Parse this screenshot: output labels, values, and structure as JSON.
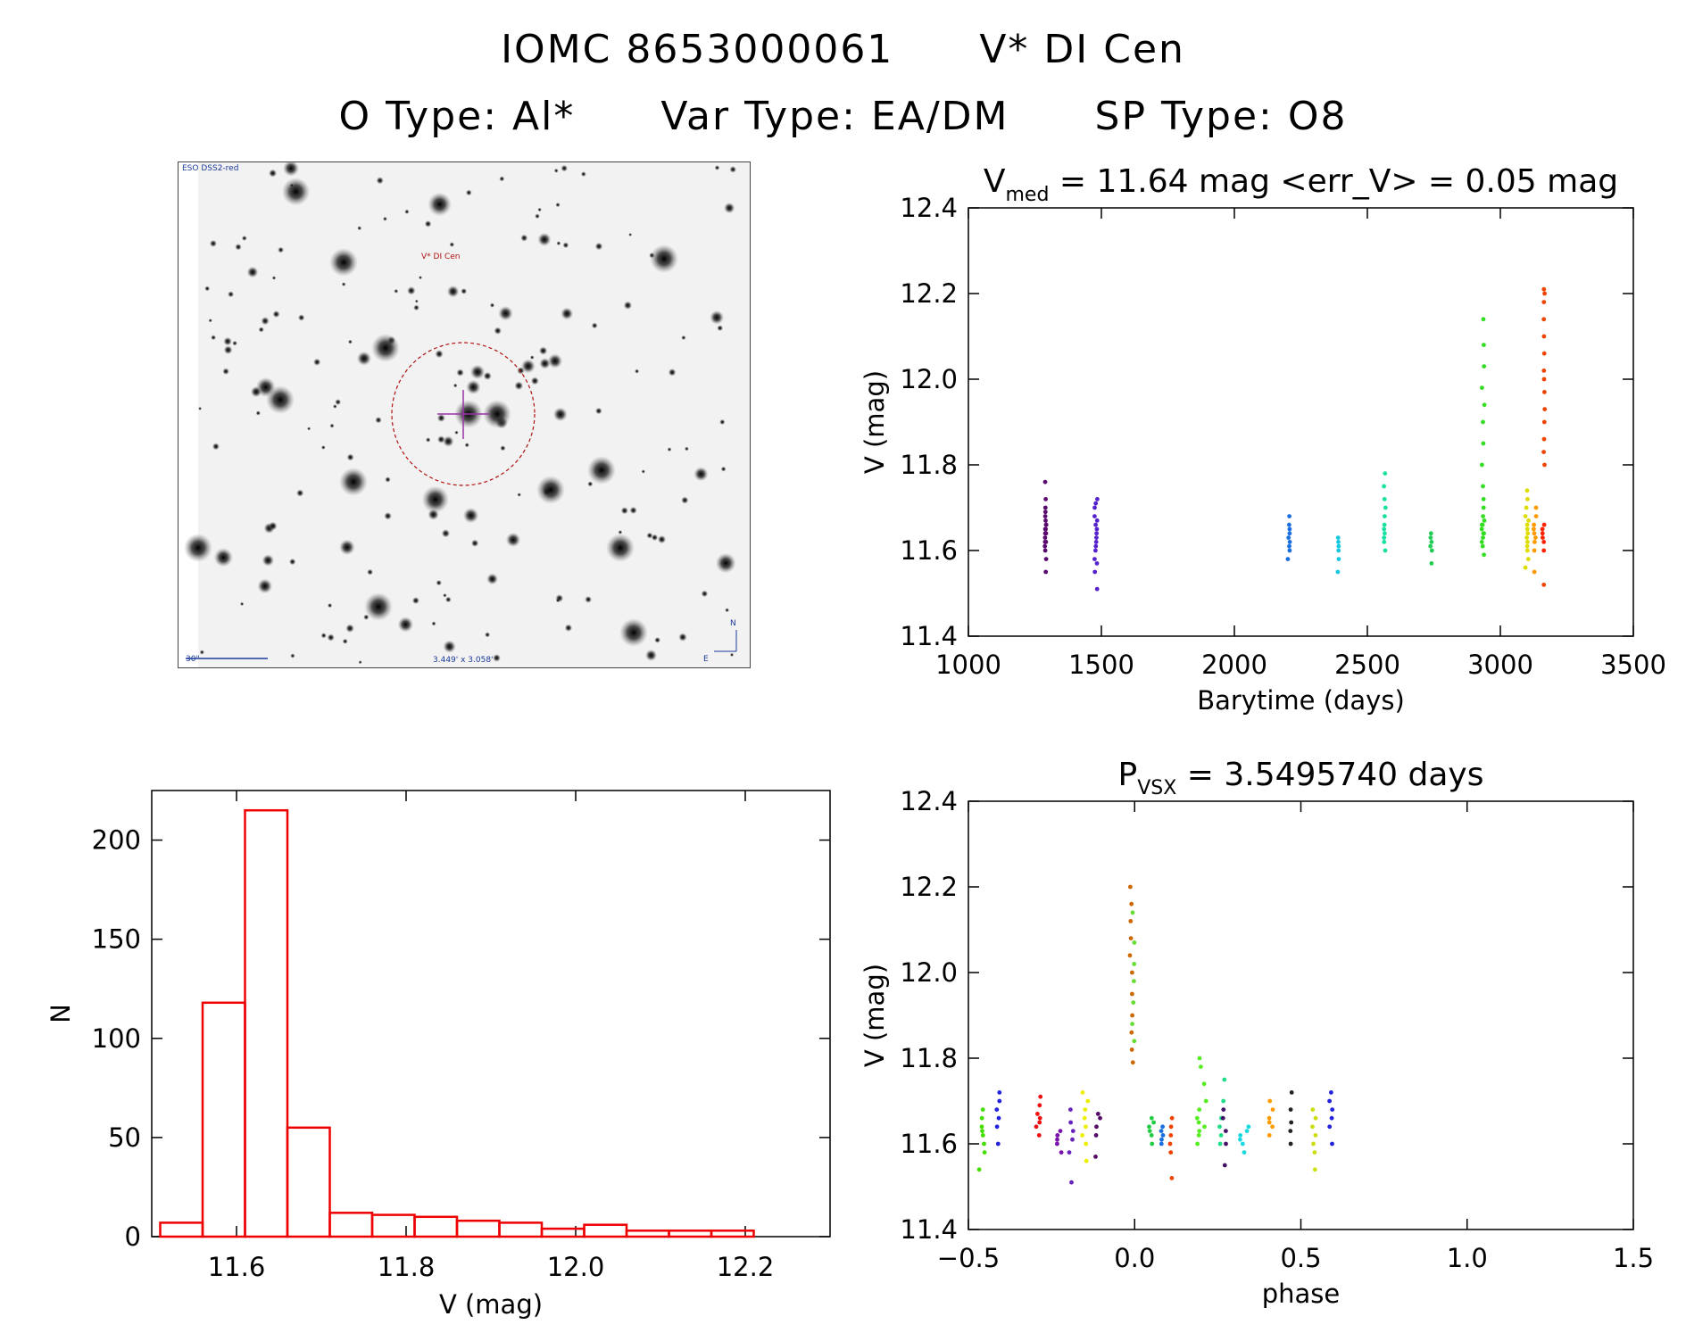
{
  "header": {
    "id_label": "IOMC 8653000061",
    "star_name": "V* DI Cen",
    "otype": "O Type: Al*",
    "vartype": "Var Type: EA/DM",
    "sptype": "SP Type: O8"
  },
  "finder": {
    "survey_label": "ESO DSS2-red",
    "target_label": "V* DI Cen",
    "scale_label": "30\"",
    "fov_label": "3.449' x 3.058'",
    "north_label": "N",
    "east_label": "E"
  },
  "chart_data": [
    {
      "type": "scatter",
      "name": "lightcurve",
      "title_main": "V",
      "title_sub": "med",
      "title_rest": " = 11.64 mag <err_V> = 0.05 mag",
      "xlabel": "Barytime (days)",
      "ylabel": "V (mag)",
      "xlim": [
        1000,
        3500
      ],
      "ylim": [
        12.4,
        11.4
      ],
      "xticks": [
        1000,
        1500,
        2000,
        2500,
        3000,
        3500
      ],
      "yticks": [
        11.4,
        11.6,
        11.8,
        12.0,
        12.2,
        12.4
      ],
      "series": [
        {
          "name": "s1",
          "color": "#5a0a6e",
          "x": 1290,
          "spread": 6,
          "y": [
            11.55,
            11.58,
            11.6,
            11.61,
            11.62,
            11.62,
            11.63,
            11.64,
            11.64,
            11.65,
            11.65,
            11.66,
            11.66,
            11.67,
            11.68,
            11.69,
            11.7,
            11.72,
            11.76
          ]
        },
        {
          "name": "s2",
          "color": "#5522cc",
          "x": 1480,
          "spread": 12,
          "y": [
            11.51,
            11.55,
            11.57,
            11.58,
            11.6,
            11.61,
            11.62,
            11.63,
            11.64,
            11.65,
            11.66,
            11.67,
            11.68,
            11.7,
            11.71,
            11.72
          ]
        },
        {
          "name": "s3",
          "color": "#1a6fe0",
          "x": 2205,
          "spread": 10,
          "y": [
            11.58,
            11.6,
            11.61,
            11.62,
            11.63,
            11.64,
            11.65,
            11.66,
            11.68
          ]
        },
        {
          "name": "s4",
          "color": "#18c8e0",
          "x": 2390,
          "spread": 6,
          "y": [
            11.55,
            11.58,
            11.6,
            11.61,
            11.62,
            11.63
          ]
        },
        {
          "name": "s5",
          "color": "#18e0a0",
          "x": 2565,
          "spread": 8,
          "y": [
            11.6,
            11.62,
            11.63,
            11.64,
            11.65,
            11.66,
            11.68,
            11.7,
            11.72,
            11.75,
            11.78
          ]
        },
        {
          "name": "s6",
          "color": "#22cc55",
          "x": 2740,
          "spread": 6,
          "y": [
            11.57,
            11.6,
            11.61,
            11.62,
            11.63,
            11.64
          ]
        },
        {
          "name": "s7",
          "color": "#33dd22",
          "x": 2935,
          "spread": 10,
          "y": [
            11.59,
            11.61,
            11.62,
            11.63,
            11.64,
            11.64,
            11.65,
            11.66,
            11.66,
            11.67,
            11.68,
            11.7,
            11.72,
            11.75,
            11.8,
            11.85,
            11.9,
            11.94,
            11.98,
            12.03,
            12.08,
            12.14
          ]
        },
        {
          "name": "s8",
          "color": "#dddd00",
          "x": 3100,
          "spread": 14,
          "y": [
            11.56,
            11.58,
            11.6,
            11.61,
            11.62,
            11.63,
            11.64,
            11.65,
            11.66,
            11.67,
            11.68,
            11.7,
            11.72,
            11.74
          ]
        },
        {
          "name": "s9",
          "color": "#ff9900",
          "x": 3130,
          "spread": 10,
          "y": [
            11.55,
            11.6,
            11.62,
            11.63,
            11.64,
            11.65,
            11.66,
            11.68,
            11.7
          ]
        },
        {
          "name": "s10",
          "color": "#ff2200",
          "x": 3160,
          "spread": 10,
          "y": [
            11.6,
            11.62,
            11.63,
            11.64,
            11.65,
            11.66
          ]
        },
        {
          "name": "s11",
          "color": "#ee4400",
          "x": 3165,
          "spread": 4,
          "y": [
            11.52,
            11.8,
            11.83,
            11.86,
            11.9,
            11.93,
            11.97,
            12.0,
            12.02,
            12.06,
            12.1,
            12.14,
            12.18,
            12.2,
            12.21
          ]
        }
      ]
    },
    {
      "type": "bar",
      "name": "histogram",
      "xlabel": "V (mag)",
      "ylabel": "N",
      "xlim": [
        11.5,
        12.3
      ],
      "ylim": [
        0,
        225
      ],
      "xticks": [
        11.6,
        11.8,
        12.0,
        12.2
      ],
      "yticks": [
        0,
        50,
        100,
        150,
        200
      ],
      "bin_width": 0.05,
      "bin_starts": [
        11.51,
        11.56,
        11.61,
        11.66,
        11.71,
        11.76,
        11.81,
        11.86,
        11.91,
        11.96,
        12.01,
        12.06,
        12.11,
        12.16
      ],
      "values": [
        7,
        118,
        215,
        55,
        12,
        11,
        10,
        8,
        7,
        4,
        6,
        3,
        3,
        3
      ],
      "color": "#ee0000"
    },
    {
      "type": "scatter",
      "name": "phased",
      "title_main": "P",
      "title_sub": "VSX",
      "title_rest": " = 3.5495740 days",
      "xlabel": "phase",
      "ylabel": "V (mag)",
      "xlim": [
        -0.5,
        1.5
      ],
      "ylim": [
        12.4,
        11.4
      ],
      "xticks": [
        -0.5,
        0.0,
        0.5,
        1.0,
        1.5
      ],
      "yticks": [
        11.4,
        11.6,
        11.8,
        12.0,
        12.2,
        12.4
      ],
      "series": [
        {
          "name": "p1",
          "color": "#44dd00",
          "x": -0.46,
          "spread": 0.02,
          "y": [
            11.54,
            11.58,
            11.6,
            11.62,
            11.63,
            11.64,
            11.66,
            11.68
          ]
        },
        {
          "name": "p2",
          "color": "#2222dd",
          "x": -0.41,
          "spread": 0.01,
          "y": [
            11.6,
            11.64,
            11.66,
            11.68,
            11.7,
            11.72
          ]
        },
        {
          "name": "p3",
          "color": "#ee1111",
          "x": -0.29,
          "spread": 0.015,
          "y": [
            11.62,
            11.64,
            11.65,
            11.66,
            11.67,
            11.69,
            11.71
          ]
        },
        {
          "name": "p4",
          "color": "#7a11aa",
          "x": -0.23,
          "spread": 0.02,
          "y": [
            11.58,
            11.6,
            11.61,
            11.62,
            11.63
          ]
        },
        {
          "name": "p5",
          "color": "#6622bb",
          "x": -0.19,
          "spread": 0.015,
          "y": [
            11.51,
            11.58,
            11.61,
            11.63,
            11.65,
            11.68
          ]
        },
        {
          "name": "p6",
          "color": "#eeee00",
          "x": -0.15,
          "spread": 0.02,
          "y": [
            11.56,
            11.6,
            11.62,
            11.64,
            11.66,
            11.68,
            11.7,
            11.72
          ]
        },
        {
          "name": "p7",
          "color": "#550a66",
          "x": -0.11,
          "spread": 0.015,
          "y": [
            11.57,
            11.62,
            11.64,
            11.66,
            11.67
          ]
        },
        {
          "name": "p8",
          "color": "#cc6600",
          "x": -0.01,
          "spread": 0.012,
          "y": [
            11.79,
            11.82,
            11.86,
            11.9,
            11.95,
            12.0,
            12.04,
            12.08,
            12.12,
            12.16,
            12.2
          ]
        },
        {
          "name": "p9",
          "color": "#66dd33",
          "x": -0.005,
          "spread": 0.01,
          "y": [
            11.84,
            11.88,
            11.93,
            11.98,
            12.02,
            12.07,
            12.14
          ]
        },
        {
          "name": "p10",
          "color": "#22cc44",
          "x": 0.05,
          "spread": 0.015,
          "y": [
            11.6,
            11.62,
            11.63,
            11.64,
            11.65,
            11.66
          ]
        },
        {
          "name": "p11",
          "color": "#1a6fe0",
          "x": 0.08,
          "spread": 0.012,
          "y": [
            11.6,
            11.61,
            11.62,
            11.63,
            11.64
          ]
        },
        {
          "name": "p12",
          "color": "#ee4400",
          "x": 0.11,
          "spread": 0.008,
          "y": [
            11.52,
            11.58,
            11.6,
            11.62,
            11.64,
            11.66
          ]
        },
        {
          "name": "p13",
          "color": "#55ee22",
          "x": 0.2,
          "spread": 0.04,
          "y": [
            11.6,
            11.62,
            11.63,
            11.64,
            11.65,
            11.66,
            11.68,
            11.7,
            11.74,
            11.78,
            11.8
          ]
        },
        {
          "name": "p14",
          "color": "#22dd88",
          "x": 0.26,
          "spread": 0.02,
          "y": [
            11.6,
            11.62,
            11.64,
            11.66,
            11.7,
            11.75
          ]
        },
        {
          "name": "p15",
          "color": "#441166",
          "x": 0.27,
          "spread": 0.01,
          "y": [
            11.55,
            11.6,
            11.63,
            11.66,
            11.68
          ]
        },
        {
          "name": "p16",
          "color": "#18d8e0",
          "x": 0.33,
          "spread": 0.03,
          "y": [
            11.58,
            11.6,
            11.61,
            11.62,
            11.63,
            11.64
          ]
        },
        {
          "name": "p17",
          "color": "#ff9900",
          "x": 0.41,
          "spread": 0.015,
          "y": [
            11.62,
            11.64,
            11.65,
            11.66,
            11.68,
            11.7
          ]
        },
        {
          "name": "p18",
          "color": "#222222",
          "x": 0.47,
          "spread": 0.01,
          "y": [
            11.6,
            11.63,
            11.65,
            11.68,
            11.72
          ]
        },
        {
          "name": "p19",
          "color": "#ccdd11",
          "x": 0.54,
          "spread": 0.02,
          "y": [
            11.54,
            11.58,
            11.6,
            11.62,
            11.64,
            11.66,
            11.68
          ]
        },
        {
          "name": "p20",
          "color": "#2222dd",
          "x": 0.59,
          "spread": 0.01,
          "y": [
            11.6,
            11.64,
            11.66,
            11.68,
            11.7,
            11.72
          ]
        }
      ]
    }
  ]
}
